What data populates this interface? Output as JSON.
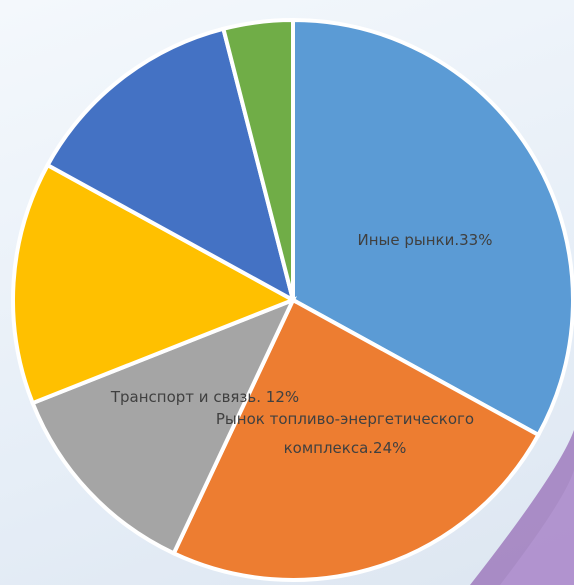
{
  "chart_data": {
    "type": "pie",
    "values": [
      33,
      24,
      12,
      14,
      13,
      4
    ],
    "value_labels": [
      "Иные рынки.33%",
      "Рынок топливо-энергетического комплекса.24%",
      "Транспорт и связь. 12%",
      null,
      null,
      null
    ],
    "colors": [
      "#5b9bd5",
      "#ed7d31",
      "#a5a5a5",
      "#ffc000",
      "#4472c4",
      "#70ad47"
    ]
  }
}
